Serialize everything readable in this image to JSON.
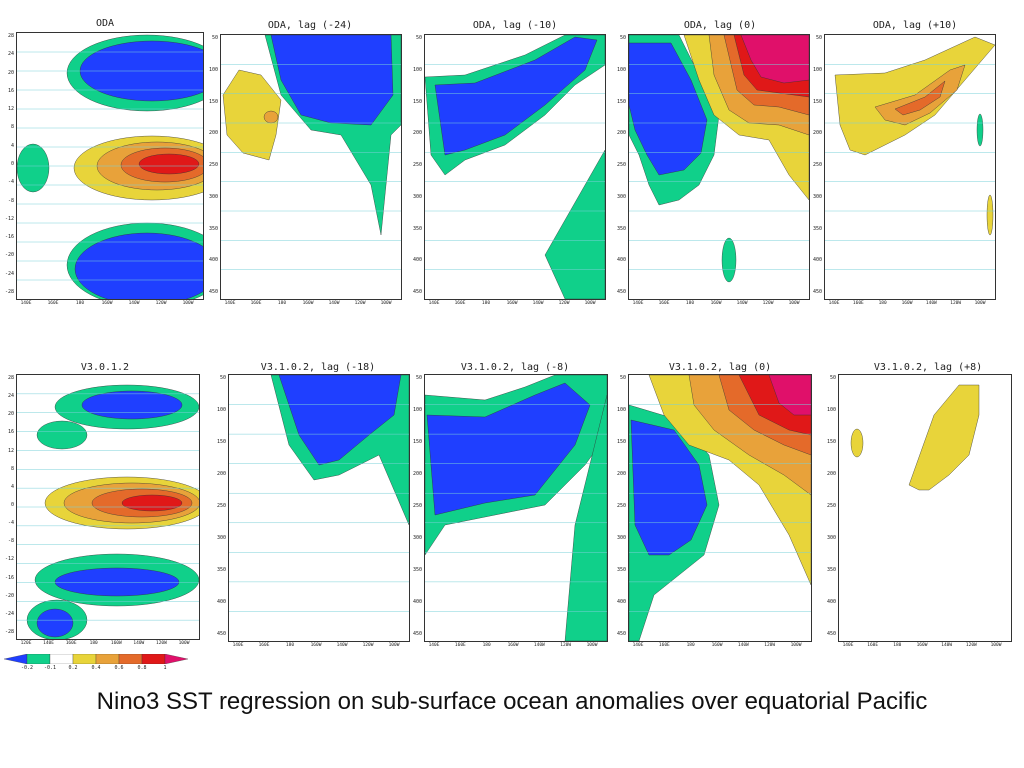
{
  "colors": {
    "cmin02": "#1f3fff",
    "cmin01": "#10d08a",
    "c02": "#e8d43a",
    "c04": "#e8a23a",
    "c06": "#e46a2a",
    "c08": "#e01818",
    "c1": "#e0106a",
    "grid": "#7ad0d8"
  },
  "panels": [
    {
      "title": "ODA"
    },
    {
      "title": "ODA, lag (-24)"
    },
    {
      "title": "ODA, lag (-10)"
    },
    {
      "title": "ODA, lag (0)"
    },
    {
      "title": "ODA, lag (+10)"
    },
    {
      "title": "V3.0.1.2"
    },
    {
      "title": "V3.1.0.2, lag (-18)"
    },
    {
      "title": "V3.1.0.2, lag (-8)"
    },
    {
      "title": "V3.1.0.2, lag (0)"
    },
    {
      "title": "V3.1.0.2, lag (+8)"
    }
  ],
  "lat_ticks": [
    "28",
    "24",
    "20",
    "16",
    "12",
    "8",
    "4",
    "0",
    "-4",
    "-8",
    "-12",
    "-16",
    "-20",
    "-24",
    "-28"
  ],
  "depth_ticks": [
    "50",
    "100",
    "150",
    "200",
    "250",
    "300",
    "350",
    "400",
    "450"
  ],
  "lon_ticks_map": [
    "140E",
    "160E",
    "180",
    "160W",
    "140W",
    "120W",
    "100W"
  ],
  "lon_ticks_map2": [
    "120E",
    "140E",
    "160E",
    "180",
    "160W",
    "140W",
    "120W",
    "100W"
  ],
  "lon_ticks_section": [
    "140E",
    "160E",
    "180",
    "160W",
    "140W",
    "120W",
    "100W"
  ],
  "colorbar": {
    "labels": [
      "-0.2",
      "-0.1",
      "0.2",
      "0.4",
      "0.6",
      "0.8",
      "1"
    ]
  },
  "chart_data": [
    {
      "type": "heatmap",
      "title": "ODA",
      "xlabel": "",
      "ylabel": "",
      "xticks": [
        "140E",
        "160E",
        "180",
        "160W",
        "140W",
        "120W",
        "100W"
      ],
      "yticks": [
        "28",
        "24",
        "20",
        "16",
        "12",
        "8",
        "4",
        "0",
        "-4",
        "-8",
        "-12",
        "-16",
        "-20",
        "-24",
        "-28"
      ],
      "contour_levels": [
        -0.2,
        -0.1,
        0.2,
        0.4,
        0.6,
        0.8,
        1
      ]
    },
    {
      "type": "heatmap",
      "title": "ODA, lag (-24)",
      "xticks": [
        "140E",
        "160E",
        "180",
        "160W",
        "140W",
        "120W",
        "100W"
      ],
      "yticks": [
        "50",
        "100",
        "150",
        "200",
        "250",
        "300",
        "350",
        "400",
        "450"
      ]
    },
    {
      "type": "heatmap",
      "title": "ODA, lag (-10)",
      "xticks": [
        "140E",
        "160E",
        "180",
        "160W",
        "140W",
        "120W",
        "100W"
      ],
      "yticks": [
        "50",
        "100",
        "150",
        "200",
        "250",
        "300",
        "350",
        "400",
        "450"
      ]
    },
    {
      "type": "heatmap",
      "title": "ODA, lag (0)",
      "xticks": [
        "140E",
        "160E",
        "180",
        "160W",
        "140W",
        "120W",
        "100W"
      ],
      "yticks": [
        "50",
        "100",
        "150",
        "200",
        "250",
        "300",
        "350",
        "400",
        "450"
      ]
    },
    {
      "type": "heatmap",
      "title": "ODA, lag (+10)",
      "xticks": [
        "140E",
        "160E",
        "180",
        "160W",
        "140W",
        "120W",
        "100W"
      ],
      "yticks": [
        "50",
        "100",
        "150",
        "200",
        "250",
        "300",
        "350",
        "400",
        "450"
      ]
    },
    {
      "type": "heatmap",
      "title": "V3.0.1.2",
      "xticks": [
        "120E",
        "140E",
        "160E",
        "180",
        "160W",
        "140W",
        "120W",
        "100W"
      ],
      "yticks": [
        "28",
        "24",
        "20",
        "16",
        "12",
        "8",
        "4",
        "0",
        "-4",
        "-8",
        "-12",
        "-16",
        "-20",
        "-24",
        "-28"
      ]
    },
    {
      "type": "heatmap",
      "title": "V3.1.0.2, lag (-18)",
      "xticks": [
        "140E",
        "160E",
        "180",
        "160W",
        "140W",
        "120W",
        "100W"
      ],
      "yticks": [
        "50",
        "100",
        "150",
        "200",
        "250",
        "300",
        "350",
        "400",
        "450"
      ]
    },
    {
      "type": "heatmap",
      "title": "V3.1.0.2, lag (-8)",
      "xticks": [
        "140E",
        "160E",
        "180",
        "160W",
        "140W",
        "120W",
        "100W"
      ],
      "yticks": [
        "50",
        "100",
        "150",
        "200",
        "250",
        "300",
        "350",
        "400",
        "450"
      ]
    },
    {
      "type": "heatmap",
      "title": "V3.1.0.2, lag (0)",
      "xticks": [
        "140E",
        "160E",
        "180",
        "160W",
        "140W",
        "120W",
        "100W"
      ],
      "yticks": [
        "50",
        "100",
        "150",
        "200",
        "250",
        "300",
        "350",
        "400",
        "450"
      ]
    },
    {
      "type": "heatmap",
      "title": "V3.1.0.2, lag (+8)",
      "xticks": [
        "140E",
        "160E",
        "180",
        "160W",
        "140W",
        "120W",
        "100W"
      ],
      "yticks": [
        "50",
        "100",
        "150",
        "200",
        "250",
        "300",
        "350",
        "400",
        "450"
      ]
    }
  ],
  "caption": "Nino3 SST regression on sub-surface ocean anomalies over equatorial Pacific"
}
